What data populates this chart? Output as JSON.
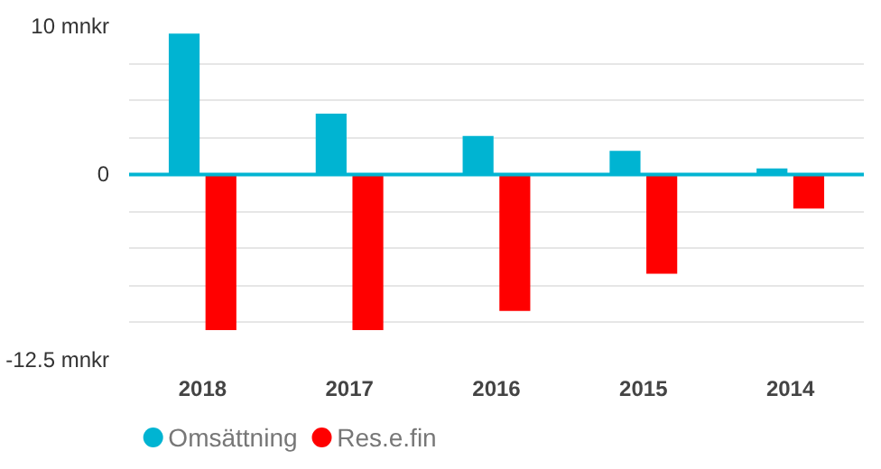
{
  "chart_data": {
    "type": "bar",
    "categories": [
      "2018",
      "2017",
      "2016",
      "2015",
      "2014"
    ],
    "series": [
      {
        "name": "Omsättning",
        "color": "#00b4d2",
        "values": [
          9.5,
          4.1,
          2.6,
          1.6,
          0.4
        ]
      },
      {
        "name": "Res.e.fin",
        "color": "#ff0000",
        "values": [
          -10.5,
          -10.5,
          -9.2,
          -6.7,
          -2.3
        ]
      }
    ],
    "ylim": [
      -12.5,
      10
    ],
    "yticks": [
      {
        "value": 10,
        "label": "10 mnkr"
      },
      {
        "value": 7.5,
        "label": null
      },
      {
        "value": 5,
        "label": null
      },
      {
        "value": 2.5,
        "label": null
      },
      {
        "value": 0,
        "label": "0"
      },
      {
        "value": -2.5,
        "label": null
      },
      {
        "value": -5,
        "label": null
      },
      {
        "value": -7.5,
        "label": null
      },
      {
        "value": -10,
        "label": null
      },
      {
        "value": -12.5,
        "label": "-12.5 mnkr"
      }
    ],
    "ref_lines": [
      {
        "axis": "y",
        "value": 0,
        "color": "#00b4d2"
      }
    ],
    "grid": "y",
    "legend": "bottom"
  }
}
